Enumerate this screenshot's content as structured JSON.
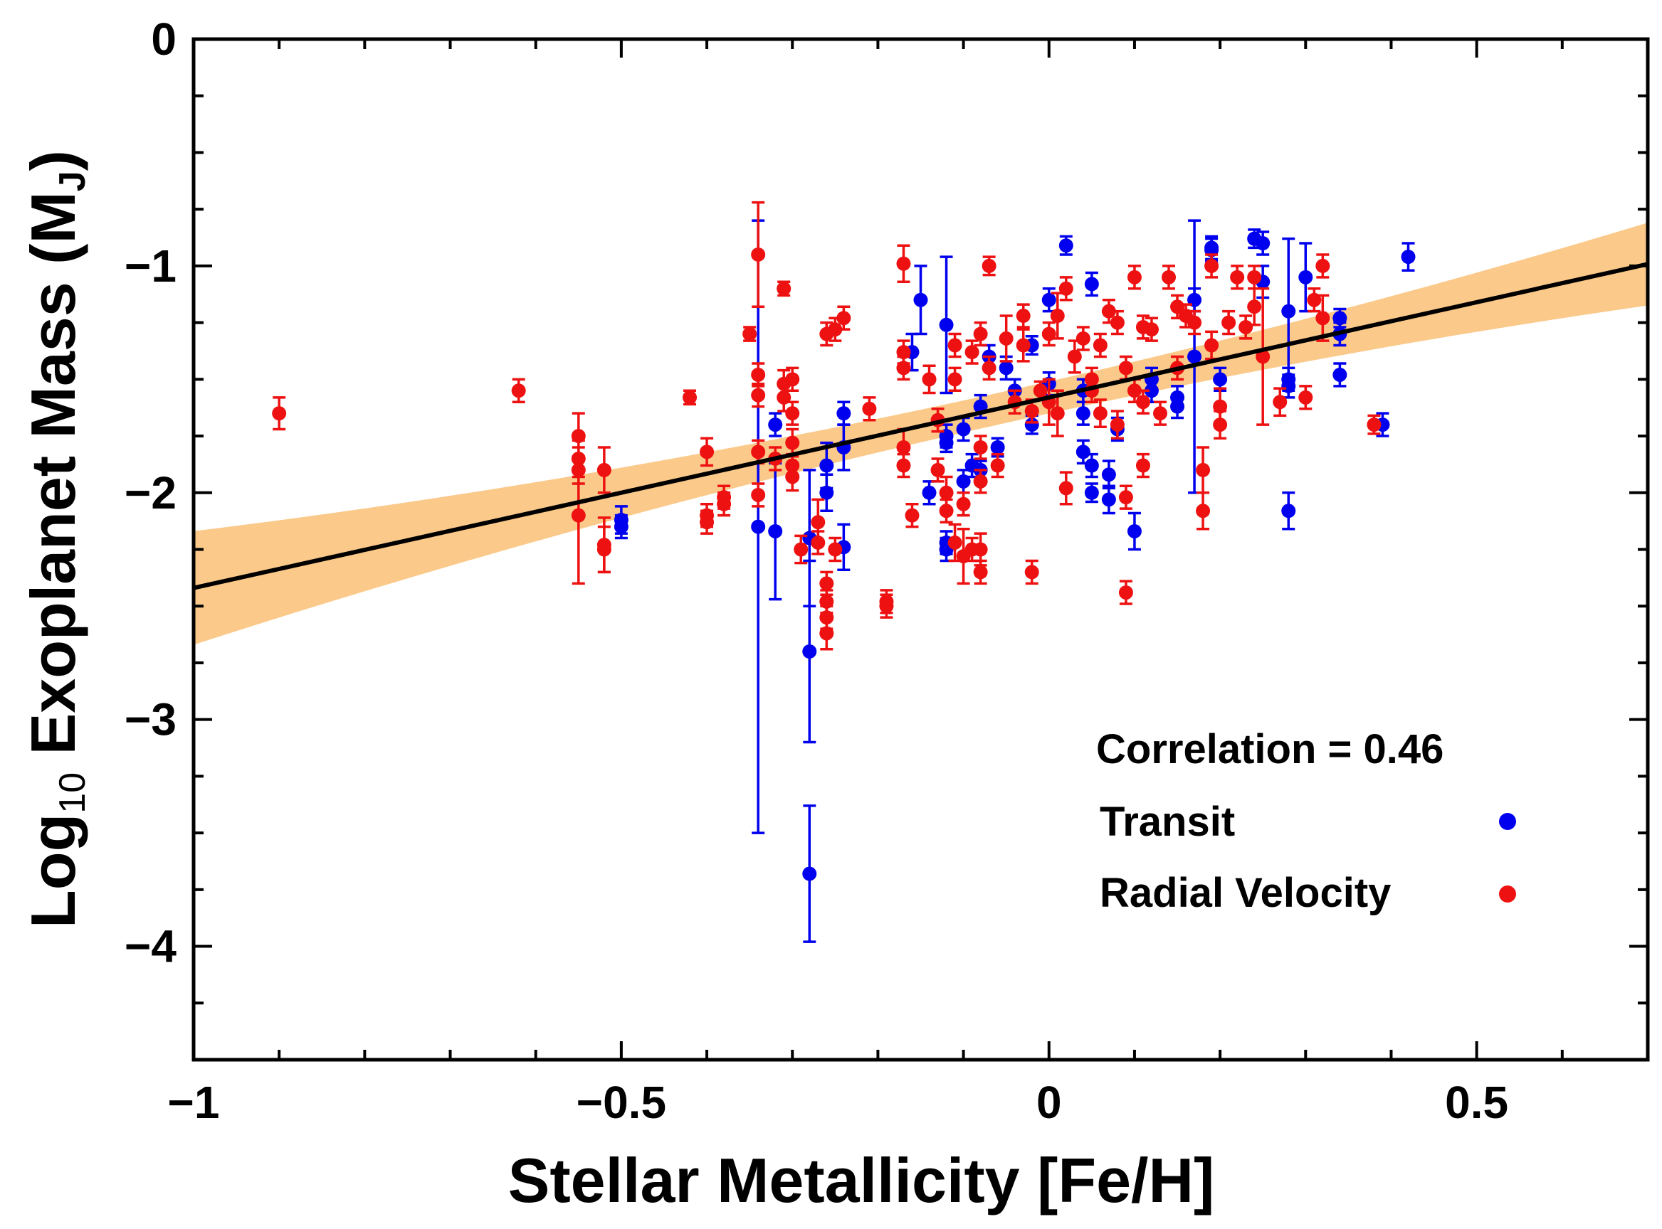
{
  "chart_data": {
    "type": "scatter",
    "title": "",
    "xlabel": "Stellar Metallicity [Fe/H]",
    "ylabel": {
      "prefix": "Log",
      "sub": "10",
      "main": " Exoplanet Mass (M",
      "unit_sub": "J",
      "suffix": ")"
    },
    "xlim": [
      -1,
      0.7
    ],
    "ylim": [
      -4.5,
      0
    ],
    "x_ticks": [
      -1,
      -0.5,
      0,
      0.5
    ],
    "x_tick_labels": [
      "−1",
      "−0.5",
      "0",
      "0.5"
    ],
    "y_ticks": [
      0,
      -1,
      -2,
      -3,
      -4
    ],
    "y_tick_labels": [
      "0",
      "−1",
      "−2",
      "−3",
      "−4"
    ],
    "x_minor_step": 0.1,
    "y_minor_step": 0.25,
    "annotation": "Correlation = 0.46",
    "fit": {
      "slope": 0.84,
      "intercept": -1.58,
      "band_halfwidth_at_mean": 0.07,
      "band_growth": 0.2,
      "mean_x": -0.05,
      "color": "#fbc98a"
    },
    "legend": [
      {
        "label": "Transit",
        "color": "#0000ee"
      },
      {
        "label": "Radial Velocity",
        "color": "#ee1111"
      }
    ],
    "series": [
      {
        "name": "Transit",
        "color": "#0000ee",
        "points": [
          [
            -0.5,
            -2.12,
            0.06
          ],
          [
            -0.5,
            -2.15,
            0.05
          ],
          [
            -0.34,
            -2.15,
            1.35
          ],
          [
            -0.32,
            -2.17,
            0.3
          ],
          [
            -0.32,
            -1.7,
            0.05
          ],
          [
            -0.28,
            -2.7,
            0.4
          ],
          [
            -0.28,
            -3.68,
            0.3
          ],
          [
            -0.28,
            -2.2,
            0.3
          ],
          [
            -0.26,
            -1.88,
            0.1
          ],
          [
            -0.26,
            -2.0,
            0.08
          ],
          [
            -0.24,
            -1.65,
            0.05
          ],
          [
            -0.24,
            -1.8,
            0.1
          ],
          [
            -0.24,
            -2.24,
            0.1
          ],
          [
            -0.15,
            -1.15,
            0.15
          ],
          [
            -0.16,
            -1.38,
            0.08
          ],
          [
            -0.14,
            -2.0,
            0.05
          ],
          [
            -0.12,
            -1.75,
            0.05
          ],
          [
            -0.12,
            -1.78,
            0.04
          ],
          [
            -0.12,
            -2.25,
            0.05
          ],
          [
            -0.12,
            -2.22,
            0.05
          ],
          [
            -0.12,
            -1.26,
            0.3
          ],
          [
            -0.1,
            -1.95,
            0.05
          ],
          [
            -0.1,
            -1.72,
            0.05
          ],
          [
            -0.09,
            -1.88,
            0.05
          ],
          [
            -0.08,
            -1.62,
            0.05
          ],
          [
            -0.08,
            -1.9,
            0.04
          ],
          [
            -0.07,
            -1.4,
            0.05
          ],
          [
            -0.06,
            -1.8,
            0.04
          ],
          [
            -0.05,
            -1.45,
            0.05
          ],
          [
            -0.04,
            -1.55,
            0.05
          ],
          [
            -0.02,
            -1.35,
            0.04
          ],
          [
            -0.02,
            -1.7,
            0.04
          ],
          [
            0.0,
            -1.15,
            0.05
          ],
          [
            0.0,
            -1.52,
            0.05
          ],
          [
            0.02,
            -0.91,
            0.04
          ],
          [
            0.04,
            -1.82,
            0.05
          ],
          [
            0.04,
            -1.55,
            0.05
          ],
          [
            0.04,
            -1.65,
            0.05
          ],
          [
            0.05,
            -1.08,
            0.05
          ],
          [
            0.05,
            -2.0,
            0.04
          ],
          [
            0.05,
            -1.88,
            0.05
          ],
          [
            0.07,
            -1.92,
            0.06
          ],
          [
            0.07,
            -2.03,
            0.06
          ],
          [
            0.08,
            -1.72,
            0.05
          ],
          [
            0.1,
            -2.17,
            0.08
          ],
          [
            0.12,
            -1.5,
            0.05
          ],
          [
            0.12,
            -1.55,
            0.05
          ],
          [
            0.15,
            -1.62,
            0.05
          ],
          [
            0.15,
            -1.58,
            0.05
          ],
          [
            0.17,
            -1.4,
            0.6
          ],
          [
            0.17,
            -1.15,
            0.05
          ],
          [
            0.19,
            -0.93,
            0.05
          ],
          [
            0.19,
            -0.92,
            0.05
          ],
          [
            0.2,
            -1.5,
            0.05
          ],
          [
            0.24,
            -0.88,
            0.04
          ],
          [
            0.25,
            -0.9,
            0.05
          ],
          [
            0.25,
            -1.07,
            0.07
          ],
          [
            0.28,
            -1.2,
            0.32
          ],
          [
            0.28,
            -1.5,
            0.05
          ],
          [
            0.28,
            -1.53,
            0.05
          ],
          [
            0.28,
            -2.08,
            0.08
          ],
          [
            0.3,
            -1.05,
            0.15
          ],
          [
            0.34,
            -1.23,
            0.04
          ],
          [
            0.34,
            -1.3,
            0.05
          ],
          [
            0.34,
            -1.48,
            0.05
          ],
          [
            0.39,
            -1.7,
            0.05
          ],
          [
            0.42,
            -0.96,
            0.06
          ]
        ]
      },
      {
        "name": "Radial Velocity",
        "color": "#ee1111",
        "points": [
          [
            -0.9,
            -1.65,
            0.07
          ],
          [
            -0.62,
            -1.55,
            0.05
          ],
          [
            -0.55,
            -1.75,
            0.1
          ],
          [
            -0.55,
            -1.85,
            0.08
          ],
          [
            -0.55,
            -1.9,
            0.06
          ],
          [
            -0.55,
            -2.1,
            0.3
          ],
          [
            -0.52,
            -1.9,
            0.1
          ],
          [
            -0.52,
            -2.25,
            0.1
          ],
          [
            -0.52,
            -2.23,
            0.12
          ],
          [
            -0.42,
            -1.58,
            0.03
          ],
          [
            -0.4,
            -1.82,
            0.06
          ],
          [
            -0.4,
            -2.1,
            0.05
          ],
          [
            -0.4,
            -2.13,
            0.05
          ],
          [
            -0.38,
            -2.02,
            0.05
          ],
          [
            -0.38,
            -2.05,
            0.05
          ],
          [
            -0.35,
            -1.3,
            0.03
          ],
          [
            -0.34,
            -0.95,
            0.23
          ],
          [
            -0.34,
            -1.48,
            0.05
          ],
          [
            -0.34,
            -1.57,
            0.05
          ],
          [
            -0.34,
            -1.82,
            0.05
          ],
          [
            -0.34,
            -2.01,
            0.05
          ],
          [
            -0.32,
            -1.85,
            0.05
          ],
          [
            -0.31,
            -1.1,
            0.03
          ],
          [
            -0.31,
            -1.52,
            0.06
          ],
          [
            -0.31,
            -1.58,
            0.06
          ],
          [
            -0.3,
            -1.5,
            0.05
          ],
          [
            -0.3,
            -1.65,
            0.05
          ],
          [
            -0.3,
            -1.78,
            0.06
          ],
          [
            -0.3,
            -1.88,
            0.05
          ],
          [
            -0.3,
            -1.93,
            0.06
          ],
          [
            -0.29,
            -2.25,
            0.06
          ],
          [
            -0.27,
            -2.13,
            0.1
          ],
          [
            -0.27,
            -2.22,
            0.05
          ],
          [
            -0.26,
            -2.4,
            0.05
          ],
          [
            -0.26,
            -2.48,
            0.05
          ],
          [
            -0.26,
            -2.55,
            0.05
          ],
          [
            -0.26,
            -2.62,
            0.07
          ],
          [
            -0.26,
            -1.3,
            0.05
          ],
          [
            -0.25,
            -2.25,
            0.05
          ],
          [
            -0.25,
            -1.28,
            0.05
          ],
          [
            -0.24,
            -1.23,
            0.05
          ],
          [
            -0.21,
            -1.63,
            0.05
          ],
          [
            -0.19,
            -2.48,
            0.05
          ],
          [
            -0.19,
            -2.5,
            0.05
          ],
          [
            -0.17,
            -1.8,
            0.08
          ],
          [
            -0.17,
            -1.88,
            0.05
          ],
          [
            -0.17,
            -1.38,
            0.05
          ],
          [
            -0.17,
            -1.45,
            0.05
          ],
          [
            -0.17,
            -0.99,
            0.08
          ],
          [
            -0.16,
            -2.1,
            0.05
          ],
          [
            -0.14,
            -1.5,
            0.06
          ],
          [
            -0.13,
            -1.9,
            0.05
          ],
          [
            -0.13,
            -1.68,
            0.05
          ],
          [
            -0.12,
            -2.0,
            0.07
          ],
          [
            -0.12,
            -2.08,
            0.05
          ],
          [
            -0.11,
            -1.35,
            0.05
          ],
          [
            -0.11,
            -1.5,
            0.05
          ],
          [
            -0.11,
            -2.22,
            0.08
          ],
          [
            -0.1,
            -2.28,
            0.12
          ],
          [
            -0.1,
            -2.05,
            0.05
          ],
          [
            -0.09,
            -1.38,
            0.05
          ],
          [
            -0.09,
            -2.25,
            0.05
          ],
          [
            -0.08,
            -1.3,
            0.05
          ],
          [
            -0.08,
            -1.8,
            0.05
          ],
          [
            -0.08,
            -1.95,
            0.05
          ],
          [
            -0.08,
            -2.25,
            0.07
          ],
          [
            -0.08,
            -2.35,
            0.05
          ],
          [
            -0.07,
            -1.0,
            0.04
          ],
          [
            -0.07,
            -1.45,
            0.05
          ],
          [
            -0.06,
            -1.88,
            0.05
          ],
          [
            -0.05,
            -1.32,
            0.1
          ],
          [
            -0.04,
            -1.6,
            0.05
          ],
          [
            -0.03,
            -1.22,
            0.05
          ],
          [
            -0.03,
            -1.35,
            0.07
          ],
          [
            -0.02,
            -2.35,
            0.05
          ],
          [
            -0.02,
            -1.64,
            0.05
          ],
          [
            -0.01,
            -1.55,
            0.04
          ],
          [
            0.0,
            -1.3,
            0.05
          ],
          [
            0.0,
            -1.6,
            0.1
          ],
          [
            0.01,
            -1.65,
            0.1
          ],
          [
            0.01,
            -1.22,
            0.1
          ],
          [
            0.02,
            -1.98,
            0.07
          ],
          [
            0.02,
            -1.1,
            0.05
          ],
          [
            0.03,
            -1.4,
            0.07
          ],
          [
            0.04,
            -1.32,
            0.05
          ],
          [
            0.05,
            -1.5,
            0.05
          ],
          [
            0.05,
            -1.55,
            0.05
          ],
          [
            0.06,
            -1.35,
            0.05
          ],
          [
            0.06,
            -1.65,
            0.06
          ],
          [
            0.07,
            -1.2,
            0.05
          ],
          [
            0.08,
            -1.25,
            0.05
          ],
          [
            0.08,
            -1.7,
            0.06
          ],
          [
            0.09,
            -2.02,
            0.05
          ],
          [
            0.09,
            -2.44,
            0.05
          ],
          [
            0.09,
            -1.45,
            0.05
          ],
          [
            0.1,
            -1.05,
            0.05
          ],
          [
            0.1,
            -1.55,
            0.05
          ],
          [
            0.11,
            -1.27,
            0.05
          ],
          [
            0.11,
            -1.6,
            0.05
          ],
          [
            0.11,
            -1.88,
            0.05
          ],
          [
            0.12,
            -1.28,
            0.05
          ],
          [
            0.13,
            -1.65,
            0.05
          ],
          [
            0.14,
            -1.05,
            0.05
          ],
          [
            0.15,
            -1.18,
            0.05
          ],
          [
            0.15,
            -1.45,
            0.05
          ],
          [
            0.16,
            -1.22,
            0.05
          ],
          [
            0.17,
            -1.25,
            0.05
          ],
          [
            0.18,
            -1.9,
            0.1
          ],
          [
            0.18,
            -2.08,
            0.08
          ],
          [
            0.19,
            -1.0,
            0.05
          ],
          [
            0.19,
            -1.35,
            0.06
          ],
          [
            0.2,
            -1.62,
            0.08
          ],
          [
            0.2,
            -1.7,
            0.06
          ],
          [
            0.21,
            -1.25,
            0.05
          ],
          [
            0.22,
            -1.05,
            0.05
          ],
          [
            0.23,
            -1.27,
            0.05
          ],
          [
            0.24,
            -1.18,
            0.08
          ],
          [
            0.24,
            -1.05,
            0.05
          ],
          [
            0.25,
            -1.4,
            0.3
          ],
          [
            0.27,
            -1.6,
            0.06
          ],
          [
            0.3,
            -1.58,
            0.05
          ],
          [
            0.31,
            -1.15,
            0.05
          ],
          [
            0.32,
            -1.0,
            0.05
          ],
          [
            0.32,
            -1.23,
            0.1
          ],
          [
            0.38,
            -1.7,
            0.04
          ]
        ]
      }
    ]
  }
}
